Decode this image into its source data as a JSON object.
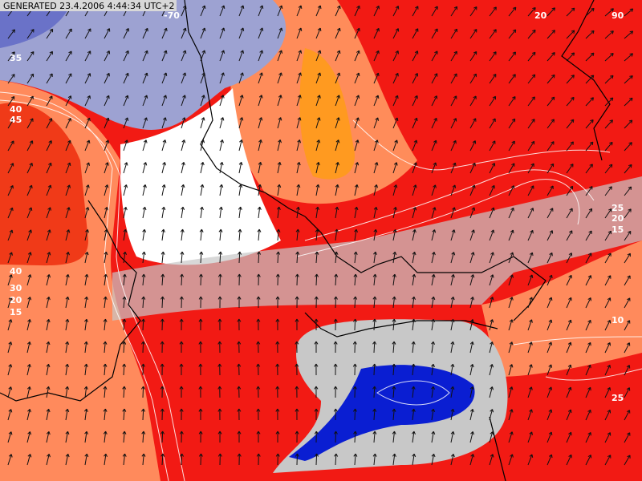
{
  "header": {
    "generated": "GENERATED 23.4.2006 4:44:34 UTC+2"
  },
  "contour_labels": [
    "-70",
    "20",
    "90",
    "35",
    "40",
    "45",
    "40",
    "30",
    "20",
    "15",
    "25",
    "20",
    "15",
    "10",
    "25"
  ]
}
